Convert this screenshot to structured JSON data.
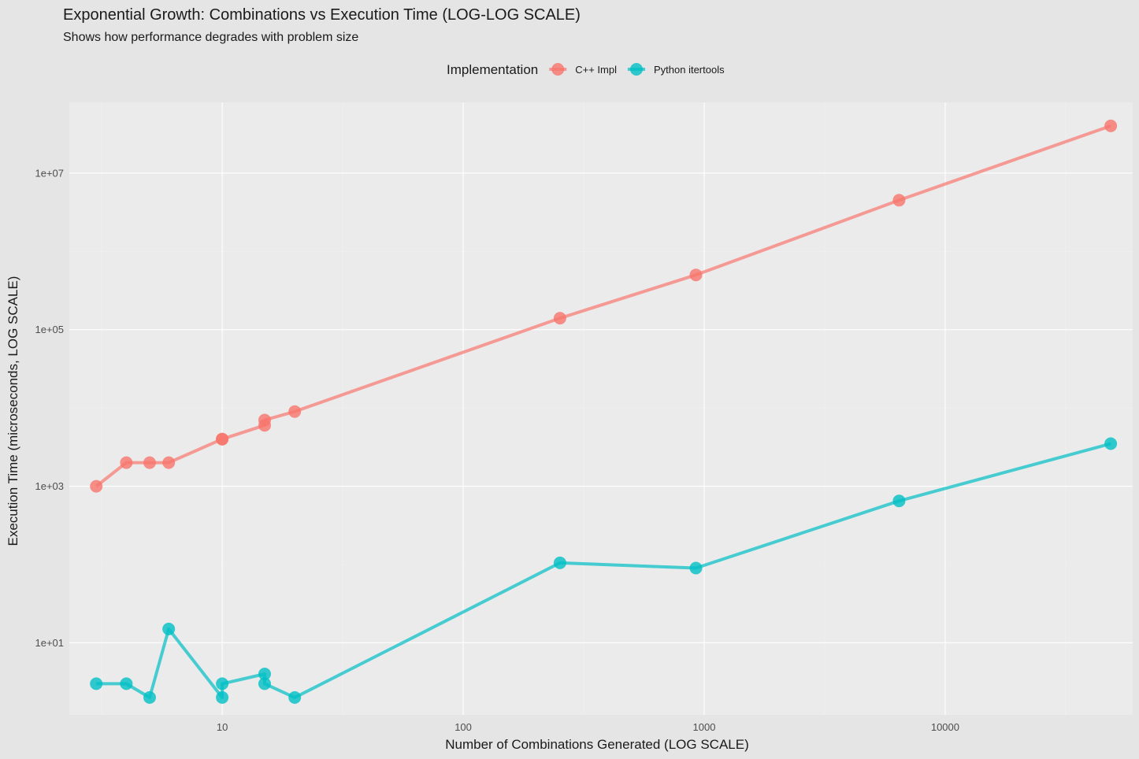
{
  "chart_data": {
    "type": "line",
    "title": "Exponential Growth: Combinations vs Execution Time (LOG-LOG SCALE)",
    "subtitle": "Shows how performance degrades with problem size",
    "xlabel": "Number of Combinations Generated (LOG SCALE)",
    "ylabel": "Execution Time (microseconds, LOG SCALE)",
    "x_scale": "log",
    "y_scale": "log",
    "xlim": [
      2.32,
      60000
    ],
    "ylim": [
      1.2,
      80000000
    ],
    "x_ticks": [
      {
        "value": 10,
        "label": "10"
      },
      {
        "value": 100,
        "label": "100"
      },
      {
        "value": 1000,
        "label": "1000"
      },
      {
        "value": 10000,
        "label": "10000"
      }
    ],
    "y_ticks": [
      {
        "value": 10,
        "label": "1e+01"
      },
      {
        "value": 1000,
        "label": "1e+03"
      },
      {
        "value": 100000,
        "label": "1e+05"
      },
      {
        "value": 10000000,
        "label": "1e+07"
      }
    ],
    "grid": true,
    "legend": {
      "title": "Implementation",
      "position": "top"
    },
    "series": [
      {
        "name": "C++ Impl",
        "color": "#f8766d",
        "points": [
          {
            "x": 3,
            "y": 1000
          },
          {
            "x": 4,
            "y": 2000
          },
          {
            "x": 5,
            "y": 2000
          },
          {
            "x": 6,
            "y": 2000
          },
          {
            "x": 10,
            "y": 4000
          },
          {
            "x": 10,
            "y": 4000
          },
          {
            "x": 15,
            "y": 6000
          },
          {
            "x": 15,
            "y": 7000
          },
          {
            "x": 20,
            "y": 9000
          },
          {
            "x": 252,
            "y": 140000
          },
          {
            "x": 924,
            "y": 500000
          },
          {
            "x": 6435,
            "y": 4500000
          },
          {
            "x": 48620,
            "y": 40000000
          }
        ]
      },
      {
        "name": "Python itertools",
        "color": "#00bfc4",
        "points": [
          {
            "x": 3,
            "y": 3
          },
          {
            "x": 4,
            "y": 3
          },
          {
            "x": 5,
            "y": 2
          },
          {
            "x": 6,
            "y": 15
          },
          {
            "x": 10,
            "y": 2
          },
          {
            "x": 10,
            "y": 3
          },
          {
            "x": 15,
            "y": 4
          },
          {
            "x": 15,
            "y": 3
          },
          {
            "x": 20,
            "y": 2
          },
          {
            "x": 252,
            "y": 105
          },
          {
            "x": 924,
            "y": 90
          },
          {
            "x": 6435,
            "y": 650
          },
          {
            "x": 48620,
            "y": 3500
          }
        ]
      }
    ]
  }
}
